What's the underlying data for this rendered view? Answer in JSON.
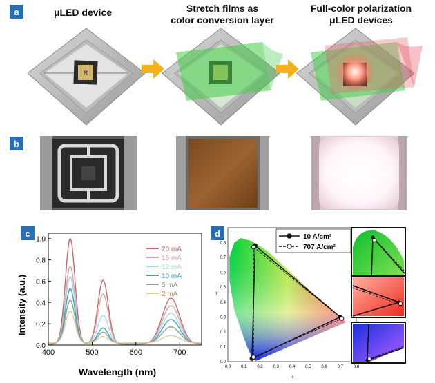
{
  "panel_a": {
    "label": "a",
    "headers": [
      {
        "lines": [
          "μLED device"
        ]
      },
      {
        "lines": [
          "Stretch films as",
          "color conversion layer"
        ]
      },
      {
        "lines": [
          "Full-color polarization",
          "μLED devices"
        ]
      }
    ]
  },
  "panel_b": {
    "label": "b"
  },
  "panel_c": {
    "label": "c"
  },
  "panel_d": {
    "label": "d"
  },
  "colors": {
    "panel_label_bg": "#2a6fb5",
    "arrow": "#f5b01a"
  },
  "chart_data": [
    {
      "type": "line",
      "xlabel": "Wavelength (nm)",
      "ylabel": "Intensity (a.u.)",
      "xlim": [
        400,
        750
      ],
      "ylim": [
        0,
        1.05
      ],
      "xticks": [
        400,
        500,
        600,
        700
      ],
      "yticks": [
        0.0,
        0.2,
        0.4,
        0.6,
        0.8,
        1.0
      ],
      "legend_position": "right",
      "peaks": [
        {
          "center": 450,
          "width": 11
        },
        {
          "center": 525,
          "width": 12
        },
        {
          "center": 680,
          "width": 20
        }
      ],
      "baseline_values": [
        0.02,
        0.05
      ],
      "series": [
        {
          "name": "20 mA",
          "color": "#c4686a",
          "peak_heights": [
            1.0,
            0.61,
            0.44
          ]
        },
        {
          "name": "15 mA",
          "color": "#dba1a3",
          "peak_heights": [
            0.74,
            0.48,
            0.37
          ]
        },
        {
          "name": "12 mA",
          "color": "#a6dbe6",
          "peak_heights": [
            0.64,
            0.28,
            0.3
          ]
        },
        {
          "name": "10 mA",
          "color": "#3aa1cc",
          "peak_heights": [
            0.53,
            0.16,
            0.24
          ]
        },
        {
          "name": "5 mA",
          "color": "#8fa08e",
          "peak_heights": [
            0.42,
            0.12,
            0.17
          ]
        },
        {
          "name": "2 mA",
          "color": "#e5c59a",
          "peak_heights": [
            0.32,
            0.08,
            0.09
          ]
        }
      ]
    },
    {
      "type": "scatter",
      "xlabel": "x",
      "ylabel": "y",
      "xlim": [
        0,
        0.8
      ],
      "ylim": [
        0,
        0.9
      ],
      "xticks": [
        "0.0",
        "0.1",
        "0.2",
        "0.3",
        "0.4",
        "0.5",
        "0.6",
        "0.7",
        "0.8"
      ],
      "yticks": [
        "0.0",
        "0.1",
        "0.2",
        "0.3",
        "0.4",
        "0.5",
        "0.6",
        "0.7",
        "0.8"
      ],
      "legend_position": "top-right",
      "series": [
        {
          "name": "10 A/cm²",
          "marker": "filled",
          "points": [
            [
              0.17,
              0.78
            ],
            [
              0.7,
              0.3
            ],
            [
              0.15,
              0.02
            ]
          ]
        },
        {
          "name": "707 A/cm²",
          "marker": "open",
          "points": [
            [
              0.16,
              0.77
            ],
            [
              0.71,
              0.29
            ],
            [
              0.16,
              0.03
            ]
          ]
        }
      ]
    }
  ]
}
